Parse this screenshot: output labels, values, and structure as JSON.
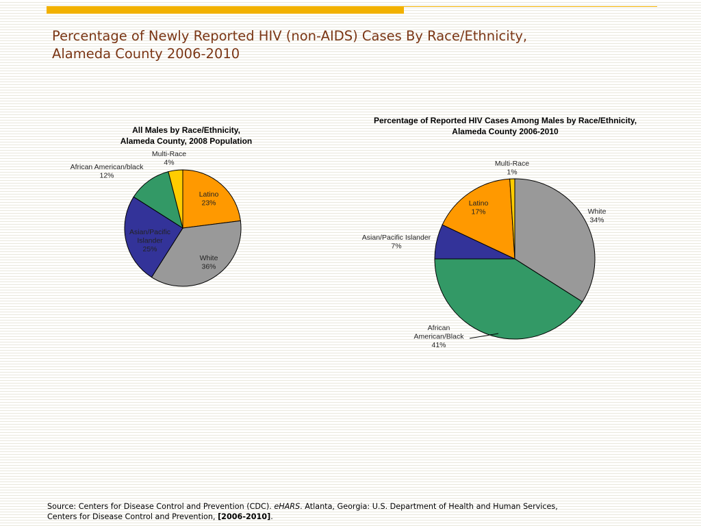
{
  "slide": {
    "title_lines": [
      "Percentage of Newly Reported HIV (non-AIDS) Cases By Race/Ethnicity,",
      "Alameda County 2006-2010"
    ],
    "accent_color": "#f2b100",
    "title_color": "#7a3514",
    "source": {
      "prefix": "Source: Centers for Disease Control and Prevention (CDC). ",
      "italic": "eHARS",
      "middle": ". Atlanta, Georgia: U.S. Department of Health and Human Services, Centers for Disease Control and Prevention, ",
      "bold": "[2006-2010]",
      "suffix": "."
    }
  },
  "chart_data": [
    {
      "type": "pie",
      "title_lines": [
        "All Males by Race/Ethnicity,",
        "Alameda County, 2008 Population"
      ],
      "slices": [
        {
          "name": "Latino",
          "value": 23,
          "label": "23%",
          "color": "#ff9900"
        },
        {
          "name": "White",
          "value": 36,
          "label": "36%",
          "color": "#999999"
        },
        {
          "name": "Asian/Pacific Islander",
          "value": 25,
          "label": "25%",
          "color": "#333399"
        },
        {
          "name": "African American/black",
          "value": 12,
          "label": "12%",
          "color": "#339966"
        },
        {
          "name": "Multi-Race",
          "value": 4,
          "label": "4%",
          "color": "#ffcc00"
        }
      ]
    },
    {
      "type": "pie",
      "title_lines": [
        "Percentage of Reported HIV Cases Among Males by Race/Ethnicity,",
        "Alameda County 2006-2010"
      ],
      "slices": [
        {
          "name": "White",
          "value": 34,
          "label": "34%",
          "color": "#999999"
        },
        {
          "name": "African American/Black",
          "value": 41,
          "label": "41%",
          "color": "#339966"
        },
        {
          "name": "Asian/Pacific Islander",
          "value": 7,
          "label": "7%",
          "color": "#333399"
        },
        {
          "name": "Latino",
          "value": 17,
          "label": "17%",
          "color": "#ff9900"
        },
        {
          "name": "Multi-Race",
          "value": 1,
          "label": "1%",
          "color": "#ffcc00"
        }
      ]
    }
  ]
}
